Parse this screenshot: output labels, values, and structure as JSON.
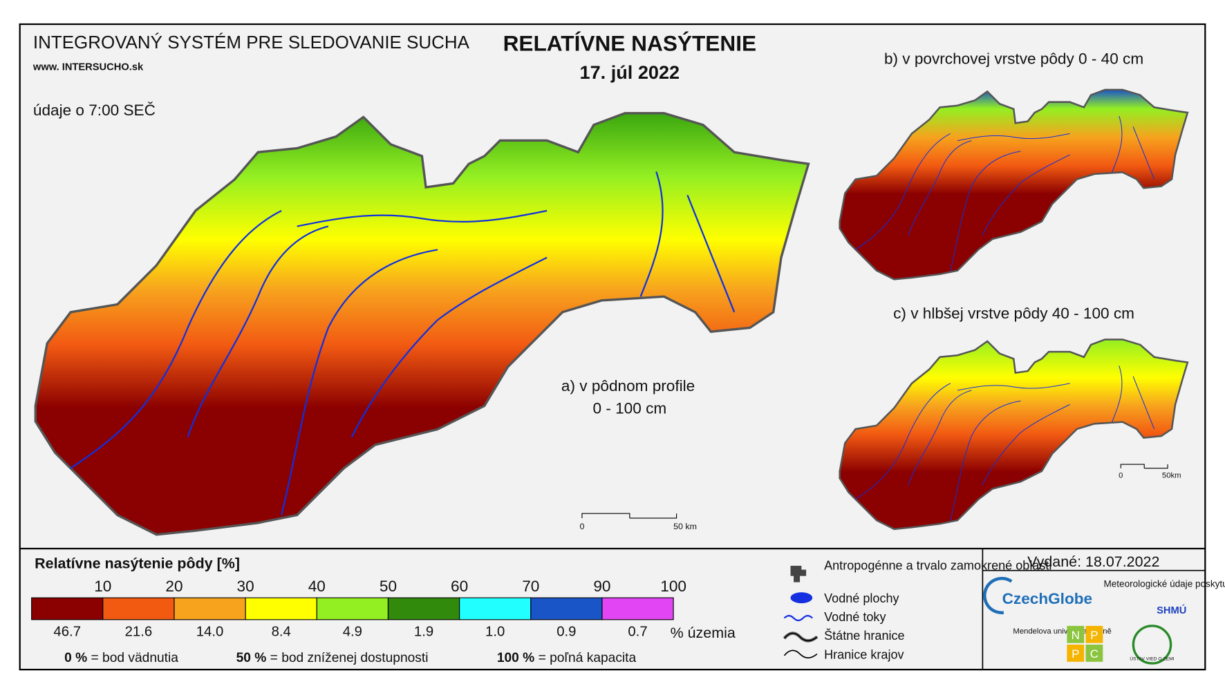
{
  "header": {
    "system_title": "INTEGROVANÝ SYSTÉM PRE SLEDOVANIE SUCHA",
    "website": "www. INTERSUCHO.sk",
    "title": "RELATÍVNE NASÝTENIE",
    "date": "17. júl 2022",
    "time_note": "údaje o 7:00 SEČ"
  },
  "maps": {
    "a": {
      "label": "a) v pôdnom profile",
      "depth": "0 - 100 cm",
      "scale_start": "0",
      "scale_end": "50 km"
    },
    "b": {
      "label": "b) v povrchovej vrstve pôdy 0 - 40 cm"
    },
    "c": {
      "label": "c) v hlbšej vrstve pôdy 40 - 100 cm",
      "scale_start": "0",
      "scale_end": "50km"
    }
  },
  "legend": {
    "title": "Relatívne nasýtenie pôdy [%]",
    "boundaries": [
      10,
      20,
      30,
      40,
      50,
      60,
      70,
      90,
      100
    ],
    "classes": [
      {
        "color": "#8b0000",
        "share": "46.7"
      },
      {
        "color": "#f25a12",
        "share": "21.6"
      },
      {
        "color": "#f7a31e",
        "share": "14.0"
      },
      {
        "color": "#ffff00",
        "share": "8.4"
      },
      {
        "color": "#94ef22",
        "share": "4.9"
      },
      {
        "color": "#318a0c",
        "share": "1.9"
      },
      {
        "color": "#22ffff",
        "share": "1.0"
      },
      {
        "color": "#1a55c8",
        "share": "0.9"
      },
      {
        "color": "#e246f4",
        "share": "0.7"
      }
    ],
    "unit": "% územia",
    "notes": [
      {
        "value": "0 %",
        "text": "= bod vädnutia"
      },
      {
        "value": "50 %",
        "text": "= bod zníženej dostupnosti"
      },
      {
        "value": "100 %",
        "text": "= poľná kapacita"
      }
    ]
  },
  "symbols": [
    "Antropogénne a trvalo zamokrené oblasti",
    "Vodné plochy",
    "Vodné toky",
    "Štátne hranice",
    "Hranice krajov"
  ],
  "footer": {
    "issued": "Vydané: 18.07.2022",
    "czechglobe": "CzechGlobe",
    "meteo": "Meteorologické údaje poskytuje:",
    "shmu": "SHMÚ",
    "mendel": "Mendelova univerzita v Brně",
    "npc": [
      "N",
      "P",
      "P",
      "C"
    ],
    "uvz": "ÚSTAV VIED O ZEMI"
  }
}
